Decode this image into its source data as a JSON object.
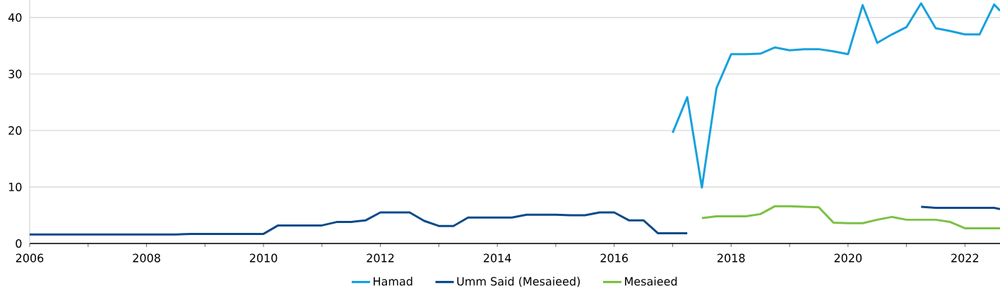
{
  "chart_data": {
    "type": "line",
    "xlim": [
      2006,
      2022.6
    ],
    "ylim": [
      0,
      43.1
    ],
    "xticks": [
      2006,
      {
        "value": 2007,
        "label": null
      },
      2008,
      {
        "value": 2009,
        "label": null
      },
      2010,
      {
        "value": 2011,
        "label": null
      },
      2012,
      {
        "value": 2013,
        "label": null
      },
      2014,
      {
        "value": 2015,
        "label": null
      },
      2016,
      {
        "value": 2017,
        "label": null
      },
      2018,
      {
        "value": 2019,
        "label": null
      },
      2020,
      {
        "value": 2021,
        "label": null
      },
      2022
    ],
    "yticks": [
      0,
      10,
      20,
      30,
      40
    ],
    "grid": "y",
    "legend": "bottom",
    "line_style": "solid",
    "series": [
      {
        "name": "Hamad",
        "color": "#16a1dd",
        "x": [
          2017,
          2017.25,
          2017.5,
          2017.75,
          2018,
          2018.25,
          2018.5,
          2018.75,
          2019,
          2019.25,
          2019.5,
          2019.75,
          2020,
          2020.25,
          2020.5,
          2020.75,
          2021,
          2021.25,
          2021.5,
          2021.75,
          2022,
          2022.25,
          2022.5,
          2022.6
        ],
        "values": [
          19.6,
          25.9,
          9.9,
          27.5,
          33.5,
          33.5,
          33.6,
          34.7,
          34.2,
          34.4,
          34.4,
          34.0,
          33.5,
          42.2,
          35.5,
          37.0,
          38.3,
          42.5,
          38.1,
          37.6,
          37.0,
          37.0,
          42.3,
          41.2
        ]
      },
      {
        "name": "Umm Said (Mesaieed)",
        "color": "#0a4a8a",
        "x": [
          2006,
          2006.5,
          2007,
          2007.5,
          2008,
          2008.5,
          2008.75,
          2009,
          2009.5,
          2010,
          2010.25,
          2010.5,
          2010.75,
          2011,
          2011.25,
          2011.5,
          2011.75,
          2012,
          2012.25,
          2012.5,
          2012.75,
          2013,
          2013.25,
          2013.5,
          2013.75,
          2014,
          2014.25,
          2014.5,
          2014.75,
          2015,
          2015.25,
          2015.5,
          2015.75,
          2016,
          2016.25,
          2016.5,
          2016.75,
          2017,
          2017.25,
          2019,
          2021.25,
          2021.5,
          2021.75,
          2022,
          2022.25,
          2022.5,
          2022.6
        ],
        "values": [
          1.6,
          1.6,
          1.6,
          1.6,
          1.6,
          1.6,
          1.7,
          1.7,
          1.7,
          1.7,
          3.2,
          3.2,
          3.2,
          3.2,
          3.8,
          3.8,
          4.1,
          5.5,
          5.5,
          5.5,
          4.0,
          3.1,
          3.1,
          4.6,
          4.6,
          4.6,
          4.6,
          5.1,
          5.1,
          5.1,
          5.0,
          5.0,
          5.5,
          5.5,
          4.1,
          4.1,
          1.8,
          1.8,
          1.8,
          null,
          6.5,
          6.3,
          6.3,
          6.3,
          6.3,
          6.3,
          6.1
        ]
      },
      {
        "name": "Mesaieed",
        "color": "#7ac143",
        "x": [
          2017.5,
          2017.75,
          2018,
          2018.25,
          2018.5,
          2018.75,
          2019,
          2019.25,
          2019.5,
          2019.75,
          2020,
          2020.25,
          2020.5,
          2020.75,
          2021,
          2021.25,
          2021.5,
          2021.75,
          2022,
          2022.25,
          2022.5,
          2022.6
        ],
        "values": [
          4.5,
          4.8,
          4.8,
          4.8,
          5.2,
          6.6,
          6.6,
          6.5,
          6.4,
          3.7,
          3.6,
          3.6,
          4.2,
          4.7,
          4.2,
          4.2,
          4.2,
          3.8,
          2.7,
          2.7,
          2.7,
          2.7
        ]
      }
    ]
  }
}
